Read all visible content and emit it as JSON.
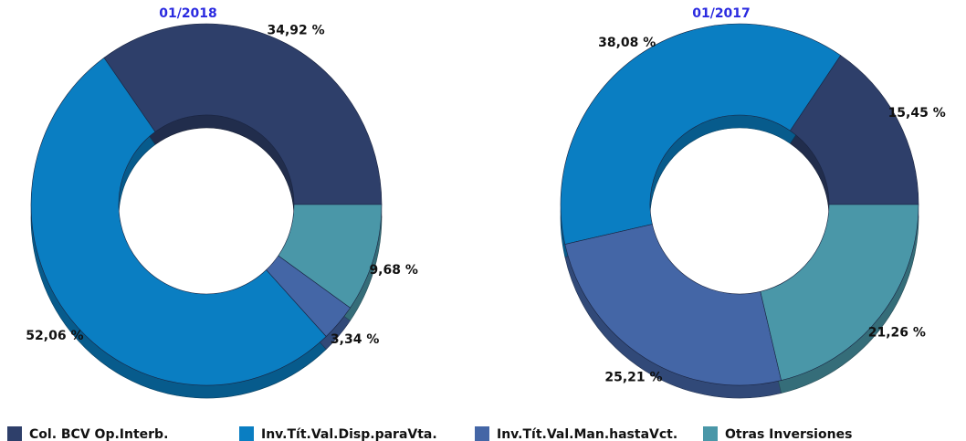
{
  "chart_data": [
    {
      "type": "pie",
      "title": "01/2018",
      "categories": [
        "Col. BCV Op.Interb.",
        "Inv.Tít.Val.Disp.paraVta.",
        "Inv.Tít.Val.Man.hastaVct.",
        "Otras Inversiones"
      ],
      "values": [
        34.92,
        52.06,
        3.34,
        9.68
      ],
      "value_labels": [
        "34,92 %",
        "52,06 %",
        "3,34 %",
        "9,68 %"
      ],
      "colors": [
        "#2e3f6a",
        "#0a7ec2",
        "#4466a6",
        "#4a97a8"
      ]
    },
    {
      "type": "pie",
      "title": "01/2017",
      "categories": [
        "Col. BCV Op.Interb.",
        "Inv.Tít.Val.Disp.paraVta.",
        "Inv.Tít.Val.Man.hastaVct.",
        "Otras Inversiones"
      ],
      "values": [
        15.45,
        38.08,
        25.21,
        21.26
      ],
      "value_labels": [
        "15,45 %",
        "38,08 %",
        "25,21 %",
        "21,26 %"
      ],
      "colors": [
        "#2e3f6a",
        "#0a7ec2",
        "#4466a6",
        "#4a97a8"
      ]
    }
  ]
}
